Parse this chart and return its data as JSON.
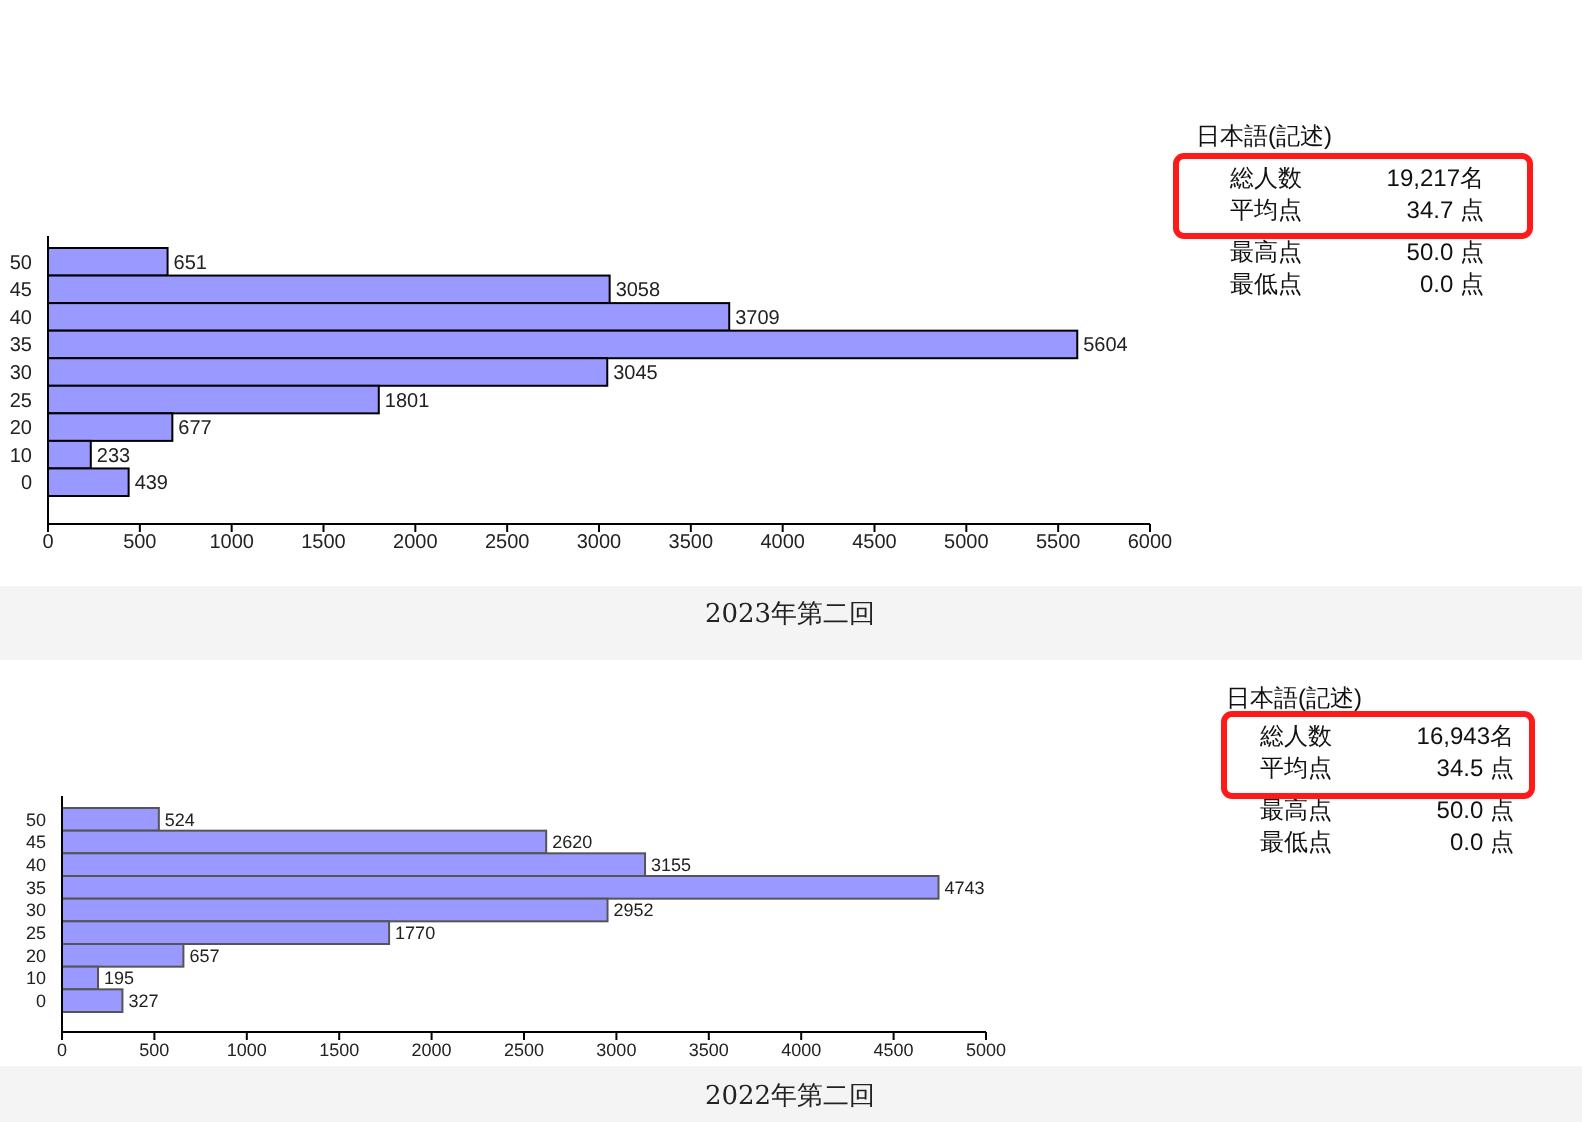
{
  "chart_data": [
    {
      "type": "bar",
      "orientation": "horizontal",
      "categories": [
        "50",
        "45",
        "40",
        "35",
        "30",
        "25",
        "20",
        "10",
        "0"
      ],
      "values": [
        651,
        3058,
        3709,
        5604,
        3045,
        1801,
        677,
        233,
        439
      ],
      "color": "#9999ff",
      "xlim": [
        0,
        6000
      ],
      "xticks": [
        0,
        500,
        1000,
        1500,
        2000,
        2500,
        3000,
        3500,
        4000,
        4500,
        5000,
        5500,
        6000
      ],
      "data_labels": true,
      "grid": false,
      "annotations": [
        "日本語(記述)",
        "総人数",
        "19,217名",
        "平均点",
        "34.7 点",
        "最高点",
        "50.0 点",
        "最低点",
        "0.0 点",
        "2023年第二回"
      ]
    },
    {
      "type": "bar",
      "orientation": "horizontal",
      "categories": [
        "50",
        "45",
        "40",
        "35",
        "30",
        "25",
        "20",
        "10",
        "0"
      ],
      "values": [
        524,
        2620,
        3155,
        4743,
        2952,
        1770,
        657,
        195,
        327
      ],
      "color": "#9999ff",
      "xlim": [
        0,
        5000
      ],
      "xticks": [
        0,
        500,
        1000,
        1500,
        2000,
        2500,
        3000,
        3500,
        4000,
        4500,
        5000
      ],
      "data_labels": true,
      "grid": false,
      "annotations": [
        "日本語(記述)",
        "総人数",
        "16,943名",
        "平均点",
        "34.5 点",
        "最高点",
        "50.0 点",
        "最低点",
        "0.0 点",
        "2022年第二回"
      ]
    }
  ]
}
